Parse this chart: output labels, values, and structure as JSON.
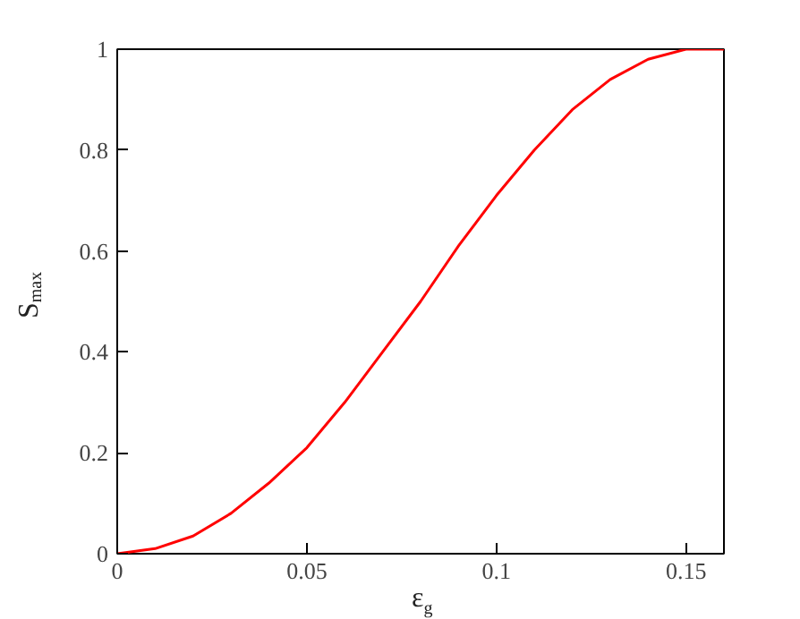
{
  "chart_data": {
    "type": "line",
    "xlabel": "ε$_{g}$",
    "ylabel": "S$_{max}$",
    "x": [
      0,
      0.01,
      0.02,
      0.03,
      0.04,
      0.05,
      0.06,
      0.07,
      0.08,
      0.09,
      0.1,
      0.11,
      0.12,
      0.13,
      0.14,
      0.15,
      0.16
    ],
    "series": [
      {
        "color": "#ff0000",
        "values": [
          0,
          0.01,
          0.035,
          0.08,
          0.14,
          0.21,
          0.3,
          0.4,
          0.5,
          0.61,
          0.71,
          0.8,
          0.88,
          0.94,
          0.98,
          1.0,
          1.0
        ]
      }
    ],
    "xlim": [
      0,
      0.16
    ],
    "ylim": [
      0,
      1
    ],
    "xticks": [
      0,
      0.05,
      0.1,
      0.15
    ],
    "yticks": [
      0,
      0.2,
      0.4,
      0.6,
      0.8,
      1
    ],
    "grid": false,
    "legend": false,
    "marker": "none",
    "line_style": "solid"
  }
}
